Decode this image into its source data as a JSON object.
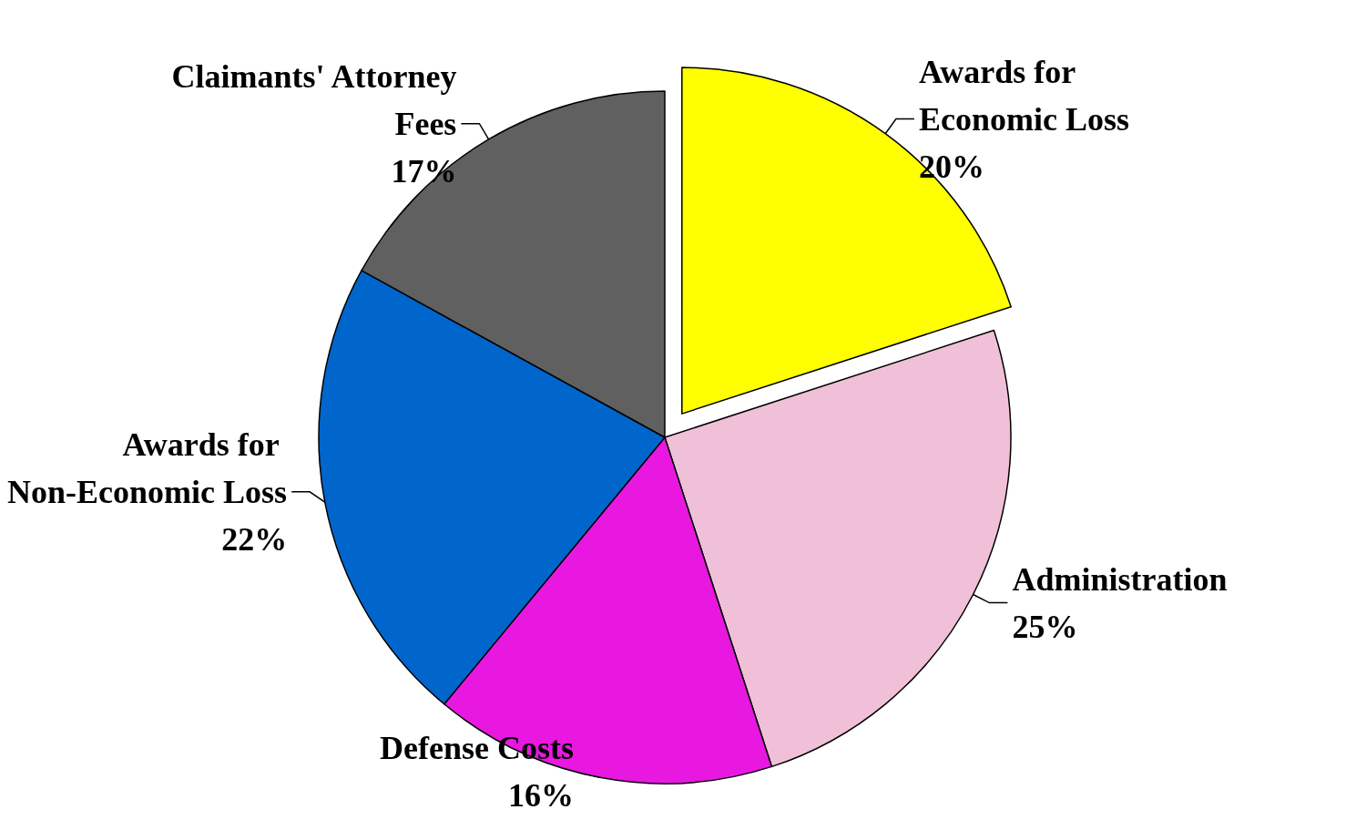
{
  "chart_data": {
    "type": "pie",
    "categories": [
      "Awards for Economic Loss",
      "Administration",
      "Defense Costs",
      "Awards for Non-Economic Loss",
      "Claimants' Attorney Fees"
    ],
    "values": [
      20,
      25,
      16,
      22,
      17
    ],
    "colors": [
      "#ffff00",
      "#f0c0d8",
      "#e818e0",
      "#0066cc",
      "#606060"
    ],
    "value_labels": [
      "20%",
      "25%",
      "16%",
      "22%",
      "17%"
    ],
    "legend": false
  }
}
